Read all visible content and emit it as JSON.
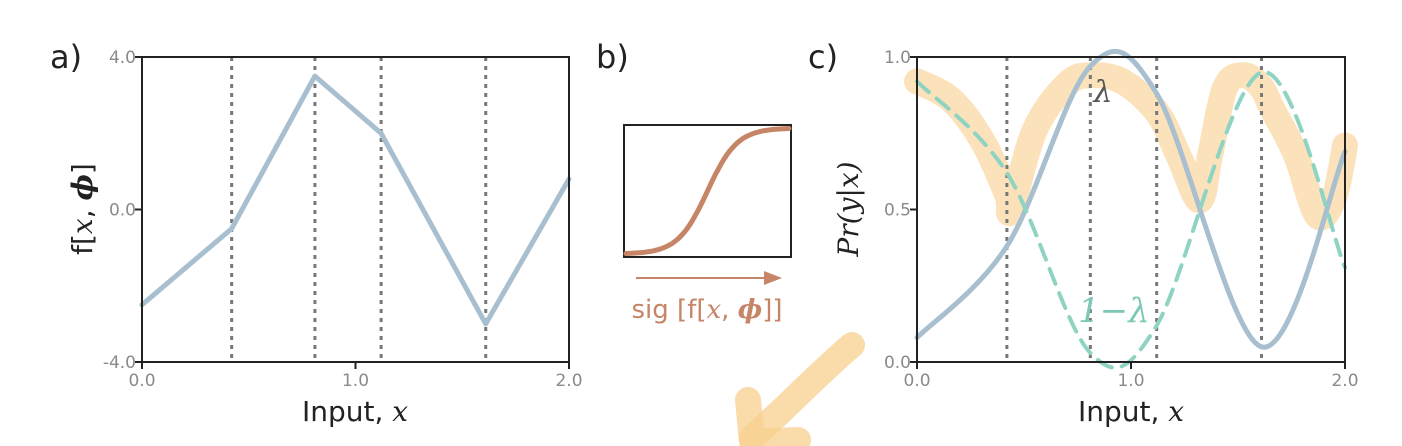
{
  "chart_data": [
    {
      "panel": "a)",
      "type": "line",
      "xlim": [
        0,
        2
      ],
      "ylim": [
        -4,
        4
      ],
      "x_ticks": [
        "0.0",
        "1.0",
        "2.0"
      ],
      "y_ticks": [
        "-4.0",
        "0.0",
        "4.0"
      ],
      "xlabel_text": "Input, ",
      "xlabel_var": "x",
      "ylabel_prefix": "f[",
      "ylabel_x": "x",
      "ylabel_sep": ", ",
      "ylabel_phi": "ϕ",
      "ylabel_suffix": "]",
      "joints": [
        0.42,
        0.81,
        1.12,
        1.61
      ],
      "series": [
        {
          "x": [
            0.0,
            0.42,
            0.81,
            1.12,
            1.61,
            2.0
          ],
          "y": [
            -2.5,
            -0.5,
            3.5,
            2.0,
            -3.0,
            0.8
          ],
          "color": "#a8bfcf"
        }
      ]
    },
    {
      "panel": "b)",
      "type": "line",
      "arrow_label_prefix": "sig [f[",
      "arrow_label_x": "x",
      "arrow_label_sep": ", ",
      "arrow_label_phi": "ϕ",
      "arrow_label_suffix": "]]",
      "color": "#c58566"
    },
    {
      "panel": "c)",
      "type": "line",
      "xlim": [
        0,
        2
      ],
      "ylim": [
        0,
        1
      ],
      "x_ticks": [
        "0.0",
        "1.0",
        "2.0"
      ],
      "y_ticks": [
        "0.0",
        "0.5",
        "1.0"
      ],
      "xlabel_text": "Input, ",
      "xlabel_var": "x",
      "ylabel": "Pr(y|x)",
      "joints": [
        0.42,
        0.81,
        1.12,
        1.61
      ],
      "series": [
        {
          "name": "λ",
          "x": [
            0.0,
            0.42,
            0.81,
            1.12,
            1.61,
            2.0
          ],
          "y": [
            0.08,
            0.38,
            0.97,
            0.88,
            0.05,
            0.69
          ],
          "color": "#a8bfcf",
          "style": "solid"
        },
        {
          "name": "1−λ",
          "x": [
            0.0,
            0.42,
            0.81,
            1.12,
            1.61,
            2.0
          ],
          "y": [
            0.92,
            0.62,
            0.03,
            0.12,
            0.95,
            0.31
          ],
          "color": "#8fd4c3",
          "style": "dashed"
        }
      ],
      "annotations": [
        {
          "text": "λ",
          "color": "#555555"
        },
        {
          "text": "1−λ",
          "color": "#7cc8b6"
        }
      ],
      "highlight": {
        "x": [
          0.0,
          0.16,
          0.31,
          0.42,
          0.44,
          0.55,
          0.7,
          0.81,
          0.96,
          1.12,
          1.22,
          1.32,
          1.37,
          1.44,
          1.53,
          1.61,
          1.66,
          1.77,
          1.87,
          1.95,
          2.0
        ],
        "y": [
          0.92,
          0.86,
          0.72,
          0.55,
          0.5,
          0.76,
          0.91,
          0.94,
          0.92,
          0.82,
          0.68,
          0.53,
          0.68,
          0.9,
          0.94,
          0.9,
          0.83,
          0.68,
          0.48,
          0.54,
          0.71
        ],
        "color": "#f8cf8d"
      }
    }
  ]
}
